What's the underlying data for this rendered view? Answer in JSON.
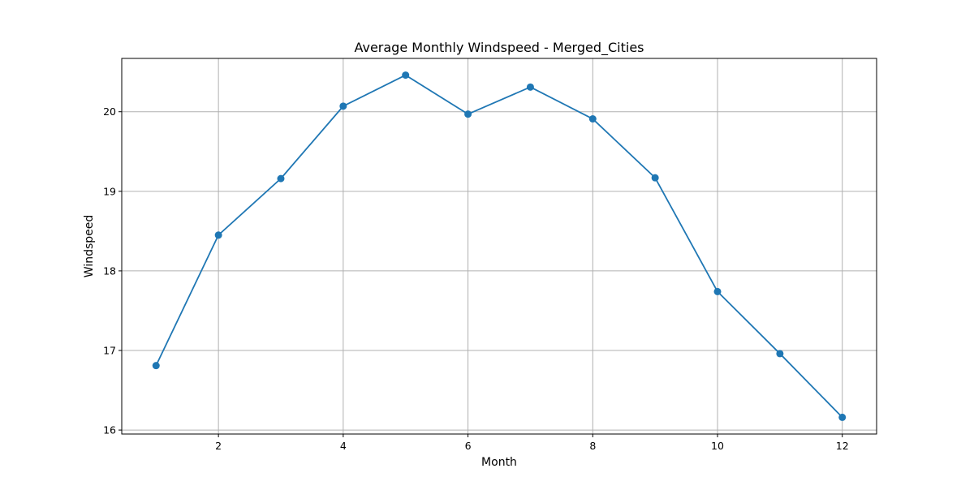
{
  "chart_data": {
    "type": "line",
    "title": "Average Monthly Windspeed - Merged_Cities",
    "xlabel": "Month",
    "ylabel": "Windspeed",
    "xlim": [
      0.45,
      12.55
    ],
    "ylim": [
      15.95,
      20.67
    ],
    "x_ticks": [
      2,
      4,
      6,
      8,
      10,
      12
    ],
    "y_ticks": [
      16,
      17,
      18,
      19,
      20
    ],
    "grid": true,
    "legend": "none",
    "colors": {
      "line": "#1f77b4",
      "grid": "#b0b0b0",
      "axes": "#000000"
    },
    "series": [
      {
        "x": [
          1,
          2,
          3,
          4,
          5,
          6,
          7,
          8,
          9,
          10,
          11,
          12
        ],
        "values": [
          16.81,
          18.45,
          19.16,
          20.07,
          20.46,
          19.97,
          20.31,
          19.91,
          19.17,
          17.74,
          16.96,
          16.16
        ],
        "marker": "circle"
      }
    ]
  }
}
